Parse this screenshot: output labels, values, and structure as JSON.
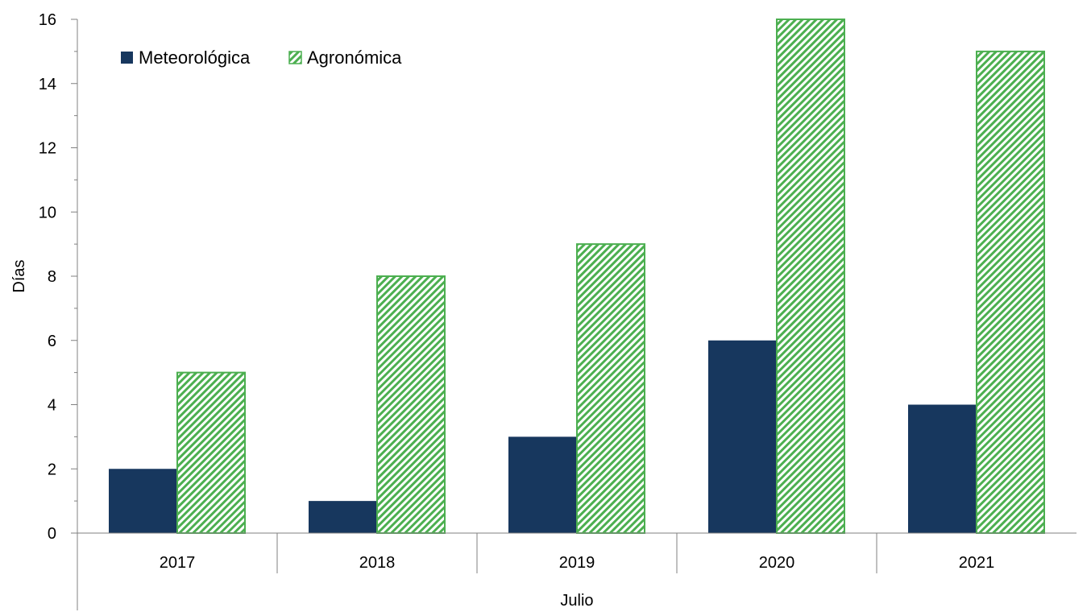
{
  "chart_data": {
    "type": "bar",
    "title": "",
    "xlabel": "Julio",
    "ylabel": "Días",
    "categories": [
      "2017",
      "2018",
      "2019",
      "2020",
      "2021"
    ],
    "series": [
      {
        "name": "Meteorológica",
        "values": [
          2,
          1,
          3,
          6,
          4
        ],
        "color": "#17375e",
        "pattern": "solid"
      },
      {
        "name": "Agronómica",
        "values": [
          5,
          8,
          9,
          16,
          15
        ],
        "color": "#4caf50",
        "pattern": "diagonal-hatch"
      }
    ],
    "ylim": [
      0,
      16
    ],
    "yticks": [
      "0",
      "2",
      "4",
      "6",
      "8",
      "10",
      "12",
      "14",
      "16"
    ],
    "grid": false,
    "legend_position": "top-left"
  }
}
